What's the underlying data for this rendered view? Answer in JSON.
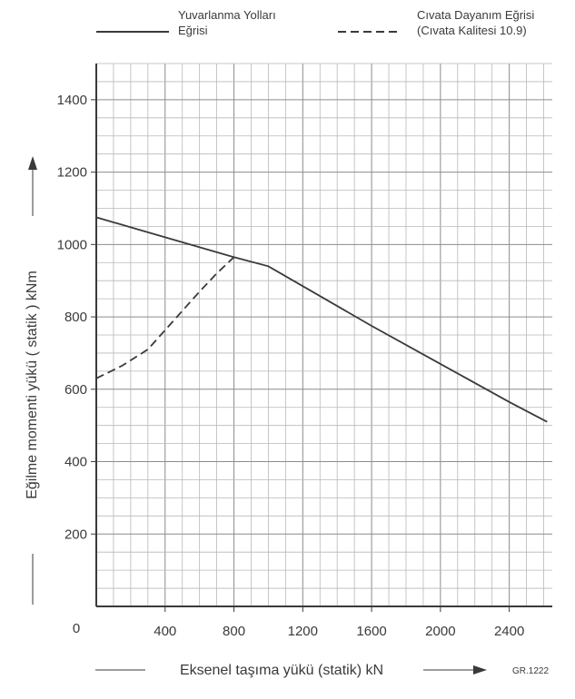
{
  "chart_data": {
    "type": "line",
    "xlabel": "Eksenel taşıma yükü  (statik) kN",
    "ylabel": "Eğilme momenti yükü  ( statik )   kNm",
    "xlim": [
      0,
      2650
    ],
    "ylim": [
      0,
      1500
    ],
    "x_ticks": [
      400,
      800,
      1200,
      1600,
      2000,
      2400
    ],
    "y_ticks": [
      200,
      400,
      600,
      800,
      1000,
      1200,
      1400
    ],
    "origin_label": "0",
    "grid": true,
    "legend_position": "top",
    "series": [
      {
        "name_lines": [
          "Yuvarlanma Yolları",
          "Eğrisi"
        ],
        "style": "solid",
        "color": "#3a3a3a",
        "points": [
          [
            0,
            1075
          ],
          [
            400,
            1020
          ],
          [
            800,
            965
          ],
          [
            1000,
            940
          ],
          [
            1200,
            885
          ],
          [
            1600,
            775
          ],
          [
            2000,
            670
          ],
          [
            2400,
            565
          ],
          [
            2620,
            510
          ]
        ]
      },
      {
        "name_lines": [
          "Cıvata Dayanım Eğrisi",
          "(Cıvata Kalitesi 10.9)"
        ],
        "style": "dashed",
        "color": "#3a3a3a",
        "points": [
          [
            0,
            630
          ],
          [
            150,
            665
          ],
          [
            300,
            710
          ],
          [
            450,
            790
          ],
          [
            600,
            870
          ],
          [
            700,
            920
          ],
          [
            800,
            965
          ]
        ]
      }
    ],
    "code_label": "GR.1222"
  }
}
